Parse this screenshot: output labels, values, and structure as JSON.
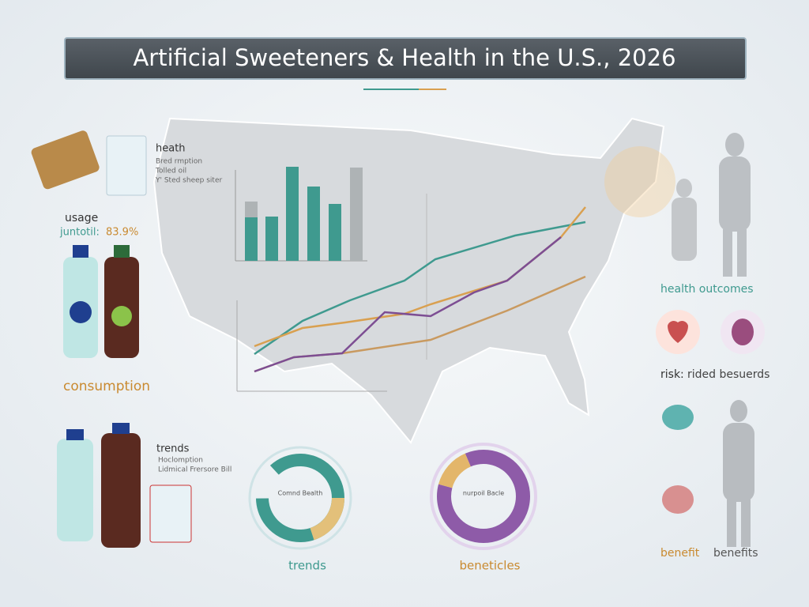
{
  "header": {
    "title": "Artificial Sweeteners & Health in the U.S., 2026"
  },
  "left_panel": {
    "heading": "heath",
    "lines": [
      "Bred rmption",
      "Tolled oil",
      "Y' Sted sheep siter"
    ],
    "usage_label": "usage",
    "usage_key": "juntotil:",
    "usage_value": "83.9%",
    "consumption_label": "consumption",
    "trends_heading": "trends",
    "trends_lines": [
      "Hoclomption",
      "Lidmical Frersore Bill"
    ]
  },
  "right_panel": {
    "health_outcomes": "health outcomes",
    "risk_label": "risk:",
    "risk_text": "rided besuerds",
    "benefit_label": "benefit",
    "benefits_label": "benefits"
  },
  "bottom": {
    "donut_left": {
      "center": "Comnd Bealth",
      "caption": "trends"
    },
    "donut_right": {
      "center": "nurpoil Bacle",
      "caption": "beneticles"
    }
  }
}
